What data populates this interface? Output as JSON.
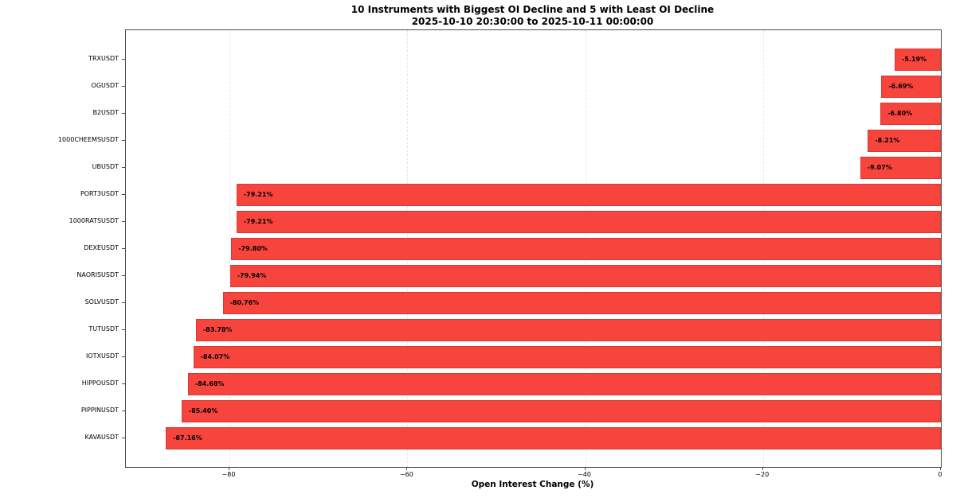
{
  "title": {
    "line1": "10 Instruments with Biggest OI Decline and 5 with Least OI Decline",
    "line2": "2025-10-10 20:30:00 to 2025-10-11 00:00:00"
  },
  "chart_data": {
    "type": "bar",
    "orientation": "horizontal",
    "title": "10 Instruments with Biggest OI Decline and 5 with Least OI Decline",
    "subtitle": "2025-10-10 20:30:00 to 2025-10-11 00:00:00",
    "categories": [
      "TRXUSDT",
      "OGUSDT",
      "B2USDT",
      "1000CHEEMSUSDT",
      "UBUSDT",
      "PORT3USDT",
      "1000RATSUSDT",
      "DEXEUSDT",
      "NAORISUSDT",
      "SOLVUSDT",
      "TUTUSDT",
      "IOTXUSDT",
      "HIPPOUSDT",
      "PIPPINUSDT",
      "KAVAUSDT"
    ],
    "values": [
      -5.19,
      -6.69,
      -6.8,
      -8.21,
      -9.07,
      -79.21,
      -79.21,
      -79.8,
      -79.94,
      -80.76,
      -83.78,
      -84.07,
      -84.68,
      -85.4,
      -87.16
    ],
    "bar_labels": [
      "-5.19%",
      "-6.69%",
      "-6.80%",
      "-8.21%",
      "-9.07%",
      "-79.21%",
      "-79.21%",
      "-79.80%",
      "-79.94%",
      "-80.76%",
      "-83.78%",
      "-84.07%",
      "-84.68%",
      "-85.40%",
      "-87.16%"
    ],
    "xlabel": "Open Interest Change (%)",
    "ylabel": "",
    "xlim": [
      -91.65,
      0
    ],
    "xticks": {
      "values": [
        -80,
        -60,
        -40,
        -20,
        0
      ],
      "labels": [
        "−80",
        "−60",
        "−40",
        "−20",
        "0"
      ]
    },
    "grid": "vertical-dashed",
    "legend": "none",
    "colors": {
      "bar_fill": "#f7453e",
      "bar_edge": "#d63a33",
      "bar_label_text": "#000000",
      "grid": "#e7e7e7",
      "spine": "#4a4a4a",
      "background": "#ffffff"
    }
  }
}
